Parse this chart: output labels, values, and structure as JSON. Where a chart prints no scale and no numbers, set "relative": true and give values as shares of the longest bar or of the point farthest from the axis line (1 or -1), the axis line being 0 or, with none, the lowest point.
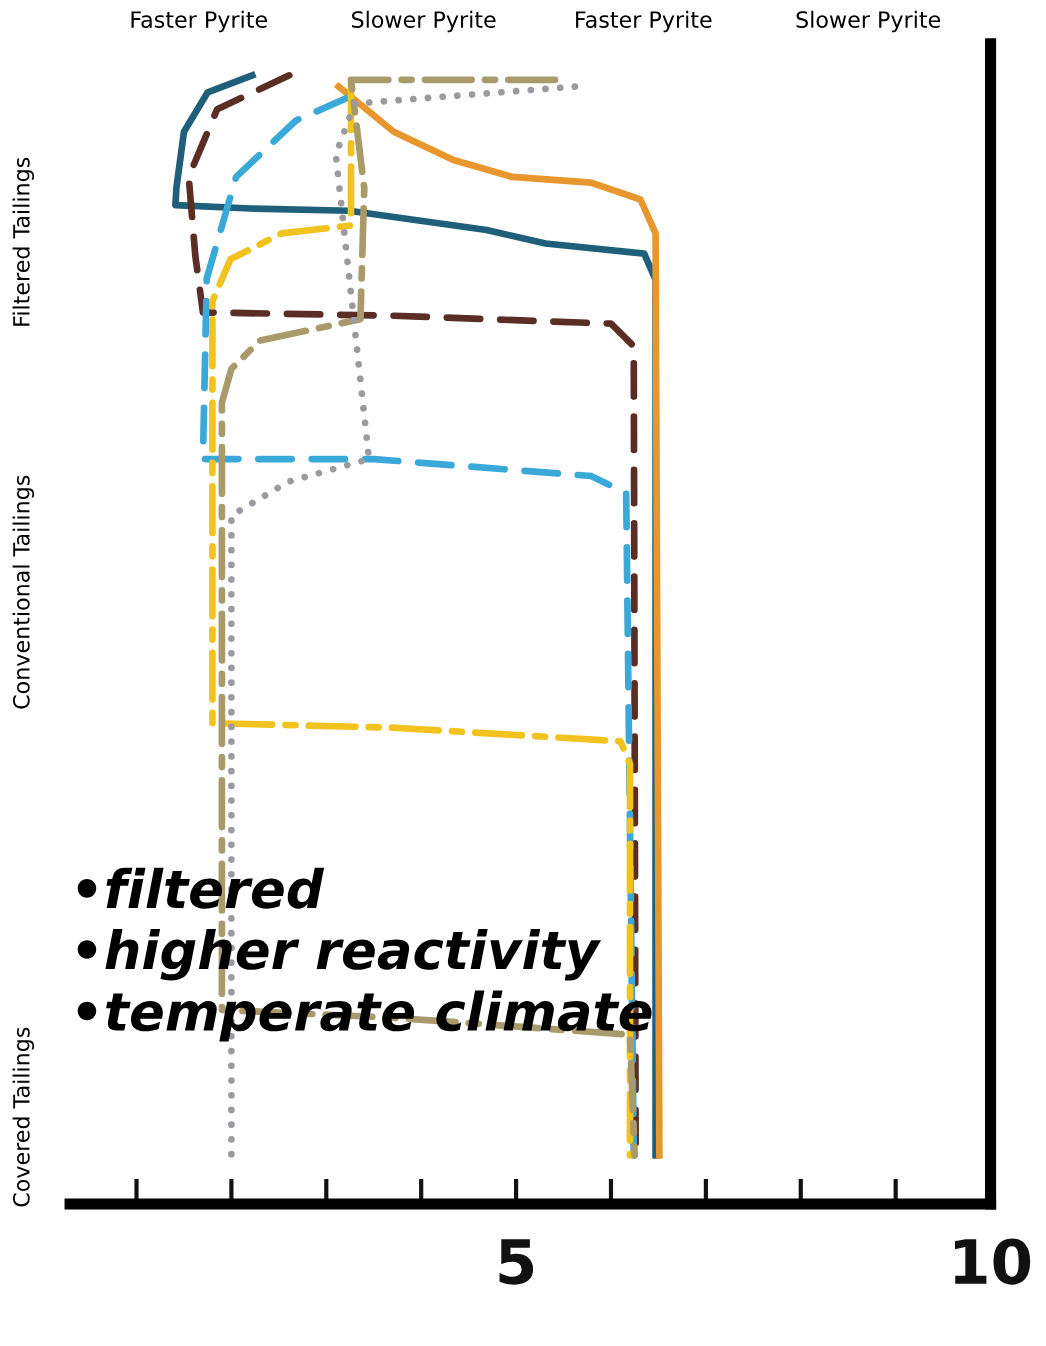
{
  "chart_data": {
    "type": "line",
    "relative": true,
    "xlim": [
      0.3,
      10
    ],
    "xticks": [
      {
        "value": 1,
        "label": null
      },
      {
        "value": 2,
        "label": null
      },
      {
        "value": 3,
        "label": null
      },
      {
        "value": 4,
        "label": null
      },
      5,
      {
        "value": 6,
        "label": null
      },
      {
        "value": 7,
        "label": null
      },
      {
        "value": 8,
        "label": null
      },
      {
        "value": 9,
        "label": null
      },
      10
    ],
    "grid": false,
    "marker": "none",
    "series": [
      {
        "color": "#1f5f7a",
        "line_style": "solid",
        "x": [
          2.22,
          1.75,
          1.5,
          1.42,
          1.41,
          2.2,
          3.24,
          4.69,
          5.31,
          6.35,
          6.47,
          6.47
        ],
        "values": [
          1.0,
          0.985,
          0.95,
          0.9,
          0.885,
          0.882,
          0.88,
          0.863,
          0.851,
          0.842,
          0.819,
          0.043
        ]
      },
      {
        "color": "#e8962e",
        "line_style": "solid",
        "x": [
          3.13,
          3.71,
          4.34,
          4.96,
          5.79,
          6.31,
          6.47,
          6.51
        ],
        "values": [
          0.99,
          0.95,
          0.925,
          0.91,
          0.905,
          0.89,
          0.86,
          0.043
        ]
      },
      {
        "color": "#5a2e25",
        "line_style": "dashed",
        "x": [
          2.61,
          1.85,
          1.55,
          1.62,
          1.7,
          3.71,
          6.0,
          6.24,
          6.26
        ],
        "values": [
          1.0,
          0.97,
          0.91,
          0.84,
          0.79,
          0.787,
          0.78,
          0.76,
          0.043
        ]
      },
      {
        "color": "#3aa8d8",
        "line_style": "dashed",
        "x": [
          3.22,
          2.68,
          2.05,
          1.74,
          1.7,
          3.5,
          5.79,
          6.16,
          6.24
        ],
        "values": [
          0.98,
          0.96,
          0.91,
          0.82,
          0.66,
          0.66,
          0.645,
          0.63,
          0.043
        ]
      },
      {
        "color": "#f2c21e",
        "line_style": "dashdot",
        "x": [
          3.26,
          3.26,
          2.53,
          1.99,
          1.8,
          1.8,
          3.71,
          6.1,
          6.2,
          6.2
        ],
        "values": [
          0.993,
          0.867,
          0.86,
          0.837,
          0.8,
          0.426,
          0.422,
          0.41,
          0.39,
          0.043
        ]
      },
      {
        "color": "#a89a6a",
        "line_style": "dashdot",
        "x": [
          5.41,
          3.26,
          3.4,
          3.36,
          2.3,
          2.0,
          1.9,
          1.9,
          3.71,
          6.2,
          6.25
        ],
        "values": [
          0.996,
          0.996,
          0.9,
          0.784,
          0.765,
          0.74,
          0.71,
          0.172,
          0.165,
          0.15,
          0.043
        ]
      },
      {
        "color": "#9a9aa0",
        "line_style": "dotted",
        "x": [
          5.62,
          3.3,
          3.1,
          3.45,
          2.6,
          2.0,
          2.0
        ],
        "values": [
          0.99,
          0.975,
          0.93,
          0.66,
          0.64,
          0.61,
          0.043
        ]
      }
    ],
    "annotations": [
      "Faster Pyrite",
      "Slower Pyrite",
      "Faster Pyrite",
      "Slower Pyrite",
      "Filtered Tailings",
      "Conventional Tailings",
      "Covered Tailings",
      "•filtered\n•higher reactivity\n•temperate climate"
    ]
  }
}
